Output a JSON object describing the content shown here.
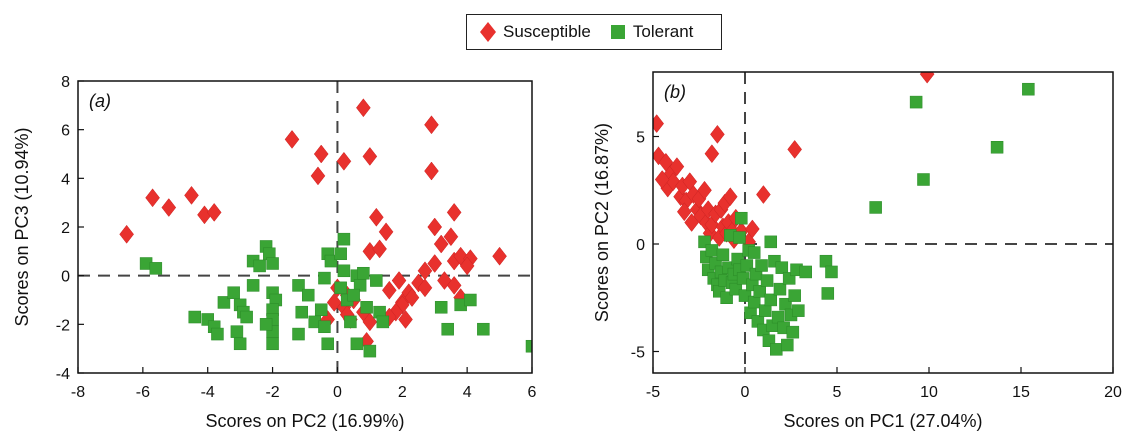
{
  "legend": {
    "items": [
      {
        "label": "Susceptible",
        "color": "#e8312d",
        "marker": "diamond"
      },
      {
        "label": "Tolerant",
        "color": "#3aa535",
        "marker": "square"
      }
    ]
  },
  "chart_data": [
    {
      "type": "scatter",
      "panel_label": "(a)",
      "xlabel": "Scores on PC2 (16.99%)",
      "ylabel": "Scores on PC3 (10.94%)",
      "xlim": [
        -8,
        6
      ],
      "ylim": [
        -4,
        8
      ],
      "xticks": [
        -8,
        -6,
        -4,
        -2,
        0,
        2,
        4,
        6
      ],
      "yticks": [
        -4,
        -2,
        0,
        2,
        4,
        6,
        8
      ],
      "series": [
        {
          "name": "Susceptible",
          "color": "#e8312d",
          "marker": "diamond",
          "points": [
            [
              -6.5,
              1.7
            ],
            [
              -5.7,
              3.2
            ],
            [
              -5.2,
              2.8
            ],
            [
              -4.5,
              3.3
            ],
            [
              -4.1,
              2.5
            ],
            [
              -3.8,
              2.6
            ],
            [
              -1.4,
              5.6
            ],
            [
              -0.6,
              4.1
            ],
            [
              -0.5,
              5.0
            ],
            [
              0.2,
              4.7
            ],
            [
              0.8,
              6.9
            ],
            [
              1.0,
              4.9
            ],
            [
              1.2,
              2.4
            ],
            [
              1.0,
              1.0
            ],
            [
              1.5,
              1.8
            ],
            [
              1.3,
              1.1
            ],
            [
              2.9,
              6.2
            ],
            [
              2.9,
              4.3
            ],
            [
              3.0,
              0.5
            ],
            [
              3.6,
              2.6
            ],
            [
              3.5,
              1.6
            ],
            [
              3.0,
              2.0
            ],
            [
              3.2,
              1.3
            ],
            [
              3.6,
              0.6
            ],
            [
              3.8,
              0.8
            ],
            [
              4.1,
              0.7
            ],
            [
              4.0,
              0.4
            ],
            [
              5.0,
              0.8
            ],
            [
              2.7,
              0.2
            ],
            [
              2.5,
              -0.3
            ],
            [
              2.2,
              -0.7
            ],
            [
              2.0,
              -1.1
            ],
            [
              2.1,
              -1.8
            ],
            [
              2.0,
              -1.2
            ],
            [
              1.8,
              -1.5
            ],
            [
              1.6,
              -1.7
            ],
            [
              1.9,
              -0.2
            ],
            [
              1.6,
              -0.6
            ],
            [
              2.3,
              -0.9
            ],
            [
              2.7,
              -0.5
            ],
            [
              3.3,
              -0.2
            ],
            [
              3.6,
              -0.4
            ],
            [
              3.8,
              -0.9
            ],
            [
              0.3,
              -0.8
            ],
            [
              0.5,
              -1.0
            ],
            [
              0.2,
              -1.3
            ],
            [
              0.8,
              -1.5
            ],
            [
              0.4,
              -1.8
            ],
            [
              -0.1,
              -1.1
            ],
            [
              -0.3,
              -1.8
            ],
            [
              0.0,
              -0.5
            ],
            [
              0.3,
              -1.6
            ],
            [
              1.0,
              -1.9
            ],
            [
              0.9,
              -2.7
            ]
          ]
        },
        {
          "name": "Tolerant",
          "color": "#3aa535",
          "marker": "square",
          "points": [
            [
              -5.9,
              0.5
            ],
            [
              -5.6,
              0.3
            ],
            [
              -4.4,
              -1.7
            ],
            [
              -4.0,
              -1.8
            ],
            [
              -3.8,
              -2.1
            ],
            [
              -3.7,
              -2.4
            ],
            [
              -3.5,
              -1.1
            ],
            [
              -3.2,
              -0.7
            ],
            [
              -3.0,
              -1.2
            ],
            [
              -2.9,
              -1.5
            ],
            [
              -2.8,
              -1.7
            ],
            [
              -2.6,
              -0.4
            ],
            [
              -2.6,
              0.6
            ],
            [
              -2.4,
              0.4
            ],
            [
              -2.2,
              1.2
            ],
            [
              -2.1,
              0.9
            ],
            [
              -2.0,
              0.5
            ],
            [
              -2.0,
              -0.7
            ],
            [
              -1.9,
              -1.0
            ],
            [
              -2.0,
              -1.4
            ],
            [
              -2.0,
              -1.8
            ],
            [
              -2.0,
              -2.3
            ],
            [
              -2.2,
              -2.0
            ],
            [
              -3.1,
              -2.3
            ],
            [
              -3.0,
              -2.8
            ],
            [
              -2.0,
              -2.8
            ],
            [
              -1.2,
              -0.4
            ],
            [
              -1.2,
              -2.4
            ],
            [
              -1.1,
              -1.5
            ],
            [
              -0.9,
              -0.8
            ],
            [
              -0.7,
              -1.9
            ],
            [
              -0.5,
              -1.4
            ],
            [
              -0.4,
              -2.1
            ],
            [
              -0.4,
              -0.1
            ],
            [
              -0.3,
              0.9
            ],
            [
              -0.3,
              -2.8
            ],
            [
              -0.2,
              0.6
            ],
            [
              0.1,
              -0.5
            ],
            [
              0.2,
              0.2
            ],
            [
              0.3,
              -1.0
            ],
            [
              0.4,
              -1.9
            ],
            [
              0.6,
              -2.8
            ],
            [
              0.2,
              1.5
            ],
            [
              0.1,
              0.9
            ],
            [
              0.6,
              0.0
            ],
            [
              0.7,
              -0.4
            ],
            [
              0.5,
              -0.8
            ],
            [
              0.9,
              -1.3
            ],
            [
              1.0,
              -3.1
            ],
            [
              1.3,
              -1.5
            ],
            [
              1.4,
              -1.9
            ],
            [
              1.2,
              -0.2
            ],
            [
              0.8,
              0.1
            ],
            [
              3.2,
              -1.3
            ],
            [
              3.4,
              -2.2
            ],
            [
              3.8,
              -1.2
            ],
            [
              4.1,
              -1.0
            ],
            [
              4.5,
              -2.2
            ],
            [
              6.0,
              -2.9
            ]
          ]
        }
      ]
    },
    {
      "type": "scatter",
      "panel_label": "(b)",
      "xlabel": "Scores on PC1 (27.04%)",
      "ylabel": "Scores on PC2 (16.87%)",
      "xlim": [
        -5,
        20
      ],
      "ylim": [
        -6,
        8
      ],
      "xticks": [
        -5,
        0,
        5,
        10,
        15,
        20
      ],
      "yticks": [
        -5,
        0,
        5
      ],
      "series": [
        {
          "name": "Susceptible",
          "color": "#e8312d",
          "marker": "diamond",
          "points": [
            [
              -4.8,
              5.6
            ],
            [
              -4.7,
              4.1
            ],
            [
              -4.3,
              3.8
            ],
            [
              -4.2,
              2.6
            ],
            [
              -4.0,
              3.3
            ],
            [
              -3.9,
              2.9
            ],
            [
              -3.7,
              3.6
            ],
            [
              -3.5,
              2.2
            ],
            [
              -3.4,
              2.7
            ],
            [
              -3.2,
              2.0
            ],
            [
              -3.0,
              2.9
            ],
            [
              -2.8,
              2.3
            ],
            [
              -2.6,
              1.6
            ],
            [
              -2.5,
              2.1
            ],
            [
              -2.4,
              1.3
            ],
            [
              -2.2,
              2.5
            ],
            [
              -2.1,
              1.0
            ],
            [
              -2.0,
              1.6
            ],
            [
              -1.9,
              0.5
            ],
            [
              -1.8,
              4.2
            ],
            [
              -1.8,
              0.9
            ],
            [
              -1.6,
              1.4
            ],
            [
              -1.5,
              5.1
            ],
            [
              -1.4,
              0.3
            ],
            [
              -1.3,
              1.6
            ],
            [
              -1.2,
              0.8
            ],
            [
              -1.1,
              1.9
            ],
            [
              -1.0,
              0.5
            ],
            [
              -0.9,
              1.0
            ],
            [
              -0.8,
              2.2
            ],
            [
              -0.7,
              0.6
            ],
            [
              -0.6,
              0.2
            ],
            [
              -0.5,
              1.2
            ],
            [
              -0.2,
              0.6
            ],
            [
              0.2,
              0.1
            ],
            [
              0.4,
              0.7
            ],
            [
              1.0,
              2.3
            ],
            [
              2.7,
              4.4
            ],
            [
              9.9,
              7.9
            ],
            [
              -3.3,
              1.5
            ],
            [
              -4.5,
              3.0
            ],
            [
              -2.9,
              1.0
            ]
          ]
        },
        {
          "name": "Tolerant",
          "color": "#3aa535",
          "marker": "square",
          "points": [
            [
              -2.2,
              0.1
            ],
            [
              -2.1,
              -0.6
            ],
            [
              -2.0,
              -1.2
            ],
            [
              -1.8,
              -0.3
            ],
            [
              -1.7,
              -1.6
            ],
            [
              -1.6,
              -0.9
            ],
            [
              -1.5,
              -1.9
            ],
            [
              -1.4,
              -2.2
            ],
            [
              -1.3,
              -1.3
            ],
            [
              -1.2,
              -0.5
            ],
            [
              -1.1,
              -1.7
            ],
            [
              -1.0,
              -2.5
            ],
            [
              -0.9,
              -1.1
            ],
            [
              -0.8,
              0.4
            ],
            [
              -0.7,
              -1.8
            ],
            [
              -0.6,
              -1.4
            ],
            [
              -0.5,
              -2.1
            ],
            [
              -0.4,
              -0.7
            ],
            [
              -0.3,
              -1.2
            ],
            [
              -0.2,
              1.2
            ],
            [
              -0.1,
              -1.6
            ],
            [
              0.0,
              -2.4
            ],
            [
              0.1,
              -1.0
            ],
            [
              0.2,
              -0.3
            ],
            [
              0.3,
              -3.2
            ],
            [
              0.4,
              -1.9
            ],
            [
              0.5,
              -2.7
            ],
            [
              0.6,
              -1.4
            ],
            [
              0.7,
              -3.6
            ],
            [
              0.8,
              -2.2
            ],
            [
              0.9,
              -1.0
            ],
            [
              1.0,
              -4.0
            ],
            [
              1.1,
              -3.1
            ],
            [
              1.2,
              -1.7
            ],
            [
              1.3,
              -4.5
            ],
            [
              1.4,
              -2.6
            ],
            [
              1.5,
              -3.8
            ],
            [
              1.6,
              -0.8
            ],
            [
              1.7,
              -4.9
            ],
            [
              1.8,
              -3.4
            ],
            [
              1.9,
              -2.1
            ],
            [
              2.0,
              -1.1
            ],
            [
              2.1,
              -3.9
            ],
            [
              2.2,
              -2.8
            ],
            [
              2.3,
              -4.7
            ],
            [
              2.4,
              -1.6
            ],
            [
              2.5,
              -3.3
            ],
            [
              2.6,
              -4.1
            ],
            [
              2.7,
              -2.4
            ],
            [
              2.8,
              -1.2
            ],
            [
              2.9,
              -3.1
            ],
            [
              3.3,
              -1.3
            ],
            [
              4.4,
              -0.8
            ],
            [
              4.5,
              -2.3
            ],
            [
              4.7,
              -1.3
            ],
            [
              7.1,
              1.7
            ],
            [
              9.3,
              6.6
            ],
            [
              9.7,
              3.0
            ],
            [
              13.7,
              4.5
            ],
            [
              15.4,
              7.2
            ],
            [
              0.5,
              -0.4
            ],
            [
              -0.3,
              0.3
            ],
            [
              1.4,
              0.1
            ]
          ]
        }
      ]
    }
  ]
}
